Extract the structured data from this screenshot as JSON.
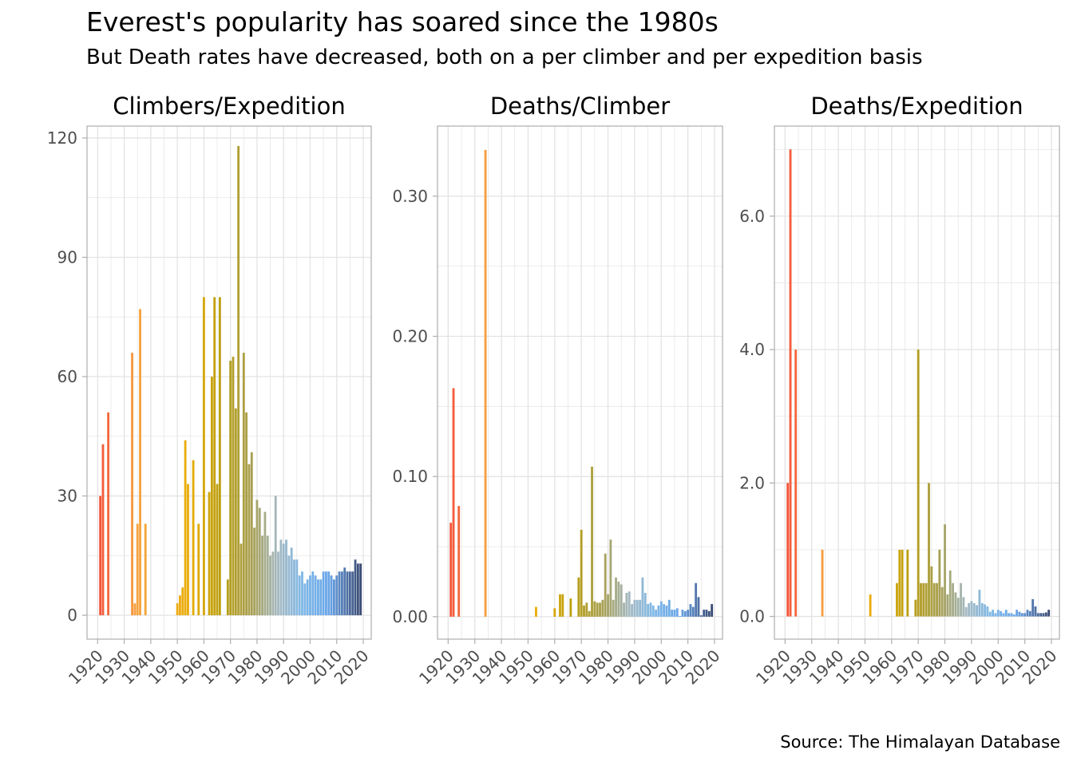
{
  "title": "Everest's popularity has soared since the 1980s",
  "subtitle": "But Death rates have decreased, both on a per climber and per expedition basis",
  "caption": "Source: The Himalayan Database",
  "colors": {
    "grid": "#e3e3e3",
    "panel_border": "#b3b3b3",
    "tick_text": "#4d4d4d",
    "palette": [
      "#f4573b",
      "#f6a23e",
      "#e9ad05",
      "#b89e12",
      "#a79f52",
      "#a4b9c2",
      "#7fb8e6",
      "#6aa5e8",
      "#3b4b74"
    ]
  },
  "chart_data": [
    {
      "type": "bar",
      "title": "Climbers/Expedition",
      "xlim": [
        1916,
        2023
      ],
      "ylim": [
        -6,
        123
      ],
      "x_ticks": [
        1920,
        1930,
        1940,
        1950,
        1960,
        1970,
        1980,
        1990,
        2000,
        2010,
        2020
      ],
      "x_tick_labels": [
        "1920",
        "1930",
        "1940",
        "1950",
        "1960",
        "1970",
        "1980",
        "1990",
        "2000",
        "2010",
        "2020"
      ],
      "y_ticks": [
        0,
        30,
        60,
        90,
        120
      ],
      "y_tick_labels": [
        "0",
        "30",
        "60",
        "90",
        "120"
      ],
      "grid": true,
      "x": [
        1921,
        1922,
        1924,
        1933,
        1934,
        1935,
        1936,
        1938,
        1950,
        1951,
        1952,
        1953,
        1954,
        1956,
        1958,
        1960,
        1962,
        1963,
        1964,
        1965,
        1966,
        1969,
        1970,
        1971,
        1972,
        1973,
        1974,
        1975,
        1976,
        1977,
        1978,
        1979,
        1980,
        1981,
        1982,
        1983,
        1984,
        1985,
        1986,
        1987,
        1988,
        1989,
        1990,
        1991,
        1992,
        1993,
        1994,
        1995,
        1996,
        1997,
        1998,
        1999,
        2000,
        2001,
        2002,
        2003,
        2004,
        2005,
        2006,
        2007,
        2008,
        2009,
        2010,
        2011,
        2012,
        2013,
        2014,
        2015,
        2016,
        2017,
        2018,
        2019
      ],
      "values": [
        30,
        43,
        51,
        66,
        3,
        23,
        77,
        23,
        3,
        5,
        7,
        44,
        33,
        39,
        23,
        80,
        31,
        60,
        80,
        33,
        80,
        9,
        64,
        65,
        52,
        118,
        18,
        66,
        51,
        38,
        41,
        22,
        29,
        27,
        20,
        26,
        20,
        15,
        16,
        30,
        16,
        19,
        18,
        19,
        15,
        17,
        14,
        14,
        10,
        11,
        8,
        9,
        10,
        11,
        10,
        9,
        9,
        11,
        11,
        11,
        10,
        9,
        10,
        11,
        11,
        12,
        11,
        11,
        11,
        14,
        13,
        13
      ]
    },
    {
      "type": "bar",
      "title": "Deaths/Climber",
      "xlim": [
        1916,
        2023
      ],
      "ylim": [
        -0.016,
        0.35
      ],
      "x_ticks": [
        1920,
        1930,
        1940,
        1950,
        1960,
        1970,
        1980,
        1990,
        2000,
        2010,
        2020
      ],
      "x_tick_labels": [
        "1920",
        "1930",
        "1940",
        "1950",
        "1960",
        "1970",
        "1980",
        "1990",
        "2000",
        "2010",
        "2020"
      ],
      "y_ticks": [
        0,
        0.1,
        0.2,
        0.3
      ],
      "y_tick_labels": [
        "0.00",
        "0.10",
        "0.20",
        "0.30"
      ],
      "grid": true,
      "x": [
        1921,
        1922,
        1924,
        1934,
        1953,
        1960,
        1962,
        1963,
        1966,
        1969,
        1970,
        1971,
        1972,
        1973,
        1974,
        1975,
        1976,
        1977,
        1978,
        1979,
        1980,
        1981,
        1982,
        1983,
        1984,
        1985,
        1986,
        1987,
        1988,
        1989,
        1990,
        1991,
        1992,
        1993,
        1994,
        1995,
        1996,
        1997,
        1998,
        1999,
        2000,
        2001,
        2002,
        2003,
        2004,
        2005,
        2006,
        2007,
        2008,
        2009,
        2010,
        2011,
        2012,
        2013,
        2014,
        2015,
        2016,
        2017,
        2018,
        2019
      ],
      "values": [
        0.067,
        0.163,
        0.079,
        0.333,
        0.007,
        0.006,
        0.016,
        0.016,
        0.013,
        0.028,
        0.062,
        0.008,
        0.01,
        0.004,
        0.107,
        0.011,
        0.01,
        0.01,
        0.012,
        0.045,
        0.016,
        0.055,
        0.012,
        0.028,
        0.025,
        0.023,
        0.01,
        0.017,
        0.018,
        0.009,
        0.012,
        0.012,
        0.012,
        0.028,
        0.017,
        0.009,
        0.01,
        0.008,
        0.005,
        0.008,
        0.011,
        0.009,
        0.008,
        0.012,
        0.005,
        0.005,
        0.006,
        0.0005,
        0.005,
        0.004,
        0.005,
        0.009,
        0.007,
        0.024,
        0.014,
        0.001,
        0.005,
        0.005,
        0.004,
        0.009
      ]
    },
    {
      "type": "bar",
      "title": "Deaths/Expedition",
      "xlim": [
        1916,
        2023
      ],
      "ylim": [
        -0.34,
        7.35
      ],
      "x_ticks": [
        1920,
        1930,
        1940,
        1950,
        1960,
        1970,
        1980,
        1990,
        2000,
        2010,
        2020
      ],
      "x_tick_labels": [
        "1920",
        "1930",
        "1940",
        "1950",
        "1960",
        "1970",
        "1980",
        "1990",
        "2000",
        "2010",
        "2020"
      ],
      "y_ticks": [
        0,
        2,
        4,
        6
      ],
      "y_tick_labels": [
        "0.0",
        "2.0",
        "4.0",
        "6.0"
      ],
      "grid": true,
      "x": [
        1921,
        1922,
        1924,
        1934,
        1952,
        1962,
        1963,
        1964,
        1966,
        1969,
        1970,
        1971,
        1972,
        1973,
        1974,
        1975,
        1976,
        1977,
        1978,
        1979,
        1980,
        1981,
        1982,
        1983,
        1984,
        1985,
        1986,
        1987,
        1988,
        1989,
        1990,
        1991,
        1992,
        1993,
        1994,
        1995,
        1996,
        1997,
        1998,
        1999,
        2000,
        2001,
        2002,
        2003,
        2004,
        2005,
        2006,
        2007,
        2008,
        2009,
        2010,
        2011,
        2012,
        2013,
        2014,
        2015,
        2016,
        2017,
        2018,
        2019
      ],
      "values": [
        2,
        7,
        4,
        1,
        0.33,
        0.5,
        1,
        1,
        1,
        0.25,
        4,
        0.5,
        0.5,
        0.5,
        2,
        0.75,
        0.5,
        0.5,
        1,
        0.44,
        1.38,
        0.33,
        0.69,
        0.5,
        0.36,
        0.28,
        0.5,
        0.29,
        0.14,
        0.2,
        0.23,
        0.2,
        0.17,
        0.4,
        0.2,
        0.18,
        0.15,
        0.07,
        0.1,
        0.05,
        0.1,
        0.08,
        0.05,
        0.1,
        0.05,
        0.05,
        0.03,
        0.1,
        0.07,
        0.05,
        0.05,
        0.1,
        0.08,
        0.26,
        0.15,
        0.05,
        0.05,
        0.05,
        0.06,
        0.1
      ]
    }
  ]
}
